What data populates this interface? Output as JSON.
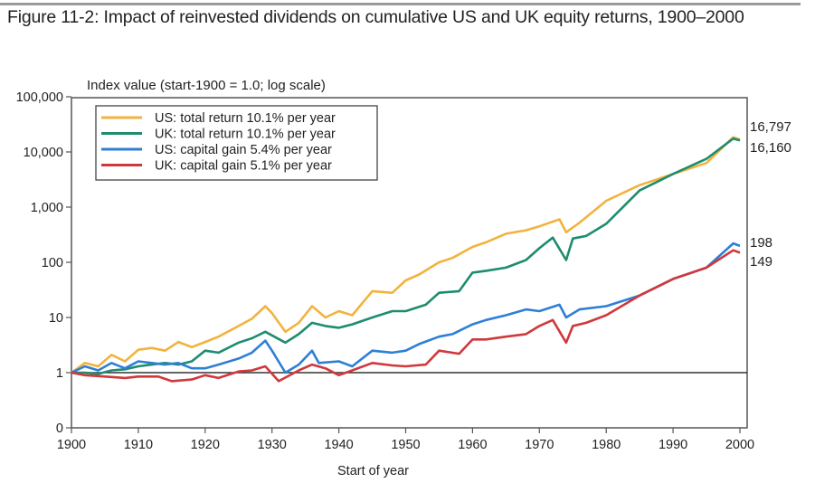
{
  "title": "Figure 11-2: Impact of reinvested dividends on cumulative US and UK equity returns, 1900–2000",
  "chart_data": {
    "type": "line",
    "title": "Figure 11-2: Impact of reinvested dividends on cumulative US and UK equity returns, 1900–2000",
    "ylabel": "Index value (start-1900 = 1.0; log scale)",
    "xlabel": "Start of year",
    "yscale": "log",
    "xlim": [
      1900,
      2001
    ],
    "ylim": [
      0.1,
      100000
    ],
    "xticks": [
      1900,
      1910,
      1920,
      1930,
      1940,
      1950,
      1960,
      1970,
      1980,
      1990,
      2000
    ],
    "yticks": [
      {
        "value": 100000,
        "label": "100,000"
      },
      {
        "value": 10000,
        "label": "10,000"
      },
      {
        "value": 1000,
        "label": "1,000"
      },
      {
        "value": 100,
        "label": "100"
      },
      {
        "value": 10,
        "label": "10"
      },
      {
        "value": 1,
        "label": "1"
      },
      {
        "value": 0.1,
        "label": "0"
      }
    ],
    "reference_line": 1,
    "grid": false,
    "legend_position": "top-left",
    "series": [
      {
        "name": "US: total return  10.1% per year",
        "color": "#f2b33d",
        "end_label": "16,797",
        "x": [
          1900,
          1902,
          1904,
          1906,
          1908,
          1910,
          1912,
          1914,
          1916,
          1918,
          1920,
          1922,
          1925,
          1927,
          1929,
          1930,
          1932,
          1934,
          1936,
          1938,
          1940,
          1942,
          1945,
          1948,
          1950,
          1952,
          1955,
          1957,
          1960,
          1962,
          1965,
          1968,
          1970,
          1973,
          1974,
          1976,
          1980,
          1985,
          1990,
          1995,
          1999,
          2000
        ],
        "values": [
          1,
          1.5,
          1.3,
          2.1,
          1.6,
          2.6,
          2.8,
          2.5,
          3.6,
          2.9,
          3.6,
          4.5,
          7,
          9.5,
          16,
          12,
          5.5,
          8,
          16,
          10,
          13,
          11,
          30,
          28,
          47,
          60,
          100,
          120,
          190,
          230,
          330,
          380,
          450,
          600,
          350,
          520,
          1300,
          2500,
          4000,
          6300,
          18500,
          16797
        ]
      },
      {
        "name": "UK: total return  10.1% per year",
        "color": "#1e8c6e",
        "end_label": "16,160",
        "x": [
          1900,
          1902,
          1904,
          1906,
          1908,
          1910,
          1912,
          1914,
          1916,
          1918,
          1920,
          1922,
          1925,
          1927,
          1929,
          1932,
          1934,
          1936,
          1938,
          1940,
          1942,
          1945,
          1948,
          1950,
          1953,
          1955,
          1958,
          1960,
          1962,
          1965,
          1968,
          1970,
          1972,
          1974,
          1975,
          1977,
          1980,
          1985,
          1990,
          1995,
          1999,
          2000
        ],
        "values": [
          1,
          1,
          0.95,
          1.1,
          1.15,
          1.3,
          1.4,
          1.5,
          1.4,
          1.6,
          2.5,
          2.3,
          3.5,
          4.2,
          5.5,
          3.5,
          5,
          8,
          7,
          6.5,
          7.5,
          10,
          13,
          13,
          17,
          28,
          30,
          65,
          70,
          80,
          110,
          180,
          280,
          110,
          270,
          300,
          500,
          2000,
          4000,
          7500,
          17500,
          16160
        ]
      },
      {
        "name": "US: capital gain  5.4% per year",
        "color": "#2e7fd6",
        "end_label": "198",
        "x": [
          1900,
          1902,
          1904,
          1906,
          1908,
          1910,
          1912,
          1914,
          1916,
          1918,
          1920,
          1922,
          1925,
          1927,
          1929,
          1930,
          1932,
          1934,
          1936,
          1937,
          1940,
          1942,
          1945,
          1948,
          1950,
          1952,
          1955,
          1957,
          1960,
          1962,
          1965,
          1968,
          1970,
          1973,
          1974,
          1976,
          1980,
          1985,
          1990,
          1995,
          1999,
          2000
        ],
        "values": [
          1,
          1.3,
          1.1,
          1.5,
          1.2,
          1.6,
          1.5,
          1.4,
          1.5,
          1.2,
          1.2,
          1.4,
          1.8,
          2.3,
          3.8,
          2.5,
          1.0,
          1.4,
          2.5,
          1.5,
          1.6,
          1.3,
          2.5,
          2.3,
          2.5,
          3.3,
          4.5,
          5,
          7.5,
          9,
          11,
          14,
          13,
          17,
          10,
          14,
          16,
          25,
          50,
          80,
          220,
          198
        ]
      },
      {
        "name": "UK: capital gain  5.1% per year",
        "color": "#d0383c",
        "end_label": "149",
        "x": [
          1900,
          1902,
          1905,
          1908,
          1910,
          1913,
          1915,
          1918,
          1920,
          1922,
          1925,
          1927,
          1929,
          1931,
          1934,
          1936,
          1938,
          1940,
          1942,
          1945,
          1948,
          1950,
          1953,
          1955,
          1958,
          1960,
          1962,
          1965,
          1968,
          1970,
          1972,
          1974,
          1975,
          1977,
          1980,
          1985,
          1990,
          1995,
          1999,
          2000
        ],
        "values": [
          1,
          0.9,
          0.85,
          0.8,
          0.85,
          0.85,
          0.7,
          0.75,
          0.9,
          0.8,
          1.05,
          1.1,
          1.3,
          0.7,
          1.1,
          1.4,
          1.2,
          0.9,
          1.1,
          1.5,
          1.35,
          1.3,
          1.4,
          2.5,
          2.2,
          4,
          4,
          4.5,
          5,
          7,
          9,
          3.5,
          7,
          8,
          11,
          25,
          50,
          80,
          165,
          149
        ]
      }
    ]
  }
}
